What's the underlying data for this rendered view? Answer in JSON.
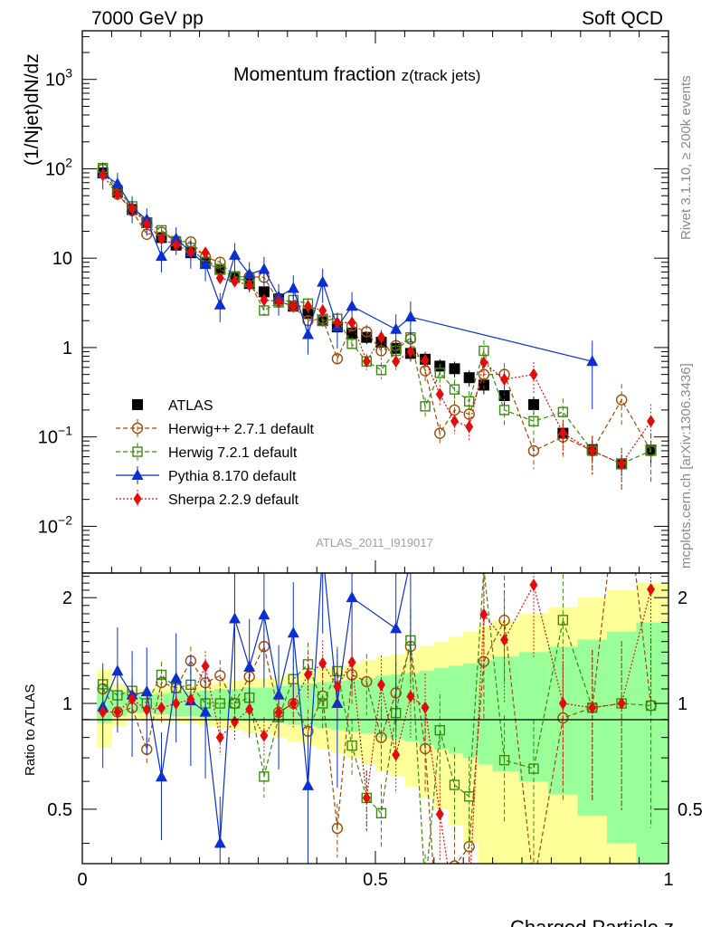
{
  "header": {
    "left": "7000 GeV pp",
    "right": "Soft QCD"
  },
  "side_labels": {
    "top": "Rivet 3.1.10, ≥ 200k events",
    "bottom": "mcplots.cern.ch [arXiv:1306.3436]"
  },
  "watermark": "ATLAS_2011_I919017",
  "chart_data": {
    "type": "scatter",
    "title": "Momentum fraction z(track jets)",
    "title_main": "Momentum fraction ",
    "title_sub": "z(track jets)",
    "xlabel": "Charged Particle z",
    "ylabel": "(1/Njet)dN/dz",
    "ratio_ylabel": "Ratio to ATLAS",
    "xlim": [
      0,
      1
    ],
    "ylim": [
      0.003,
      3500
    ],
    "ratio_ylim": [
      0.35,
      2.35
    ],
    "yscale": "log",
    "x_ticks": [
      "0",
      "0.5",
      "1"
    ],
    "y_ticks": [
      {
        "value": 0.01,
        "label": "10",
        "exp": "−2"
      },
      {
        "value": 0.1,
        "label": "10",
        "exp": "−1"
      },
      {
        "value": 1,
        "label": "1",
        "exp": ""
      },
      {
        "value": 10,
        "label": "10",
        "exp": ""
      },
      {
        "value": 100,
        "label": "10",
        "exp": "2"
      },
      {
        "value": 1000,
        "label": "10",
        "exp": "3"
      }
    ],
    "ratio_ticks": [
      "0.5",
      "1",
      "2"
    ],
    "ratio_tick_values": [
      0.5,
      1,
      2
    ],
    "legend_position": "center-left",
    "x": [
      0.035,
      0.06,
      0.085,
      0.11,
      0.135,
      0.16,
      0.185,
      0.21,
      0.235,
      0.26,
      0.285,
      0.31,
      0.335,
      0.36,
      0.385,
      0.41,
      0.435,
      0.46,
      0.485,
      0.51,
      0.535,
      0.56,
      0.585,
      0.61,
      0.635,
      0.66,
      0.685,
      0.72,
      0.77,
      0.82,
      0.87,
      0.92,
      0.97
    ],
    "band_edges": [
      0.025,
      0.05,
      0.075,
      0.1,
      0.125,
      0.15,
      0.175,
      0.2,
      0.225,
      0.25,
      0.275,
      0.3,
      0.325,
      0.35,
      0.375,
      0.4,
      0.425,
      0.45,
      0.475,
      0.5,
      0.525,
      0.55,
      0.575,
      0.6,
      0.625,
      0.65,
      0.675,
      0.7,
      0.745,
      0.795,
      0.845,
      0.895,
      0.945,
      1.0
    ],
    "band_stat": [
      0.12,
      0.08,
      0.06,
      0.06,
      0.07,
      0.08,
      0.08,
      0.09,
      0.1,
      0.1,
      0.11,
      0.11,
      0.12,
      0.13,
      0.14,
      0.15,
      0.16,
      0.17,
      0.18,
      0.2,
      0.21,
      0.22,
      0.24,
      0.26,
      0.28,
      0.3,
      0.33,
      0.36,
      0.4,
      0.45,
      0.52,
      0.6,
      0.7
    ],
    "band_total": [
      0.25,
      0.14,
      0.1,
      0.1,
      0.11,
      0.12,
      0.12,
      0.14,
      0.15,
      0.16,
      0.18,
      0.18,
      0.2,
      0.22,
      0.24,
      0.26,
      0.28,
      0.3,
      0.33,
      0.36,
      0.38,
      0.42,
      0.46,
      0.5,
      0.55,
      0.6,
      0.66,
      0.72,
      0.8,
      0.88,
      1.0,
      1.1,
      1.2
    ],
    "series": [
      {
        "name": "ATLAS",
        "color": "#000000",
        "marker": "square-filled",
        "line": "none",
        "values": [
          90,
          55,
          35,
          25,
          17,
          14,
          11.5,
          9,
          7.5,
          6.2,
          5.2,
          4.2,
          3.5,
          2.9,
          2.4,
          2.0,
          1.7,
          1.45,
          1.3,
          1.15,
          0.98,
          0.86,
          0.74,
          0.62,
          0.58,
          0.46,
          0.38,
          0.29,
          0.23,
          0.11,
          0.072,
          0.05,
          0.071
        ]
      },
      {
        "name": "Herwig++ 2.7.1 default",
        "color": "#9b4d0b",
        "marker": "circle-open",
        "line": "dashed",
        "values": [
          99,
          52,
          34,
          18.5,
          19.5,
          15.5,
          15.2,
          10.3,
          9.0,
          6.2,
          6.2,
          6.1,
          3.3,
          2.9,
          2.0,
          2.1,
          0.75,
          1.75,
          1.5,
          0.92,
          1.05,
          1.25,
          0.55,
          0.11,
          0.2,
          0.18,
          0.5,
          0.5,
          0.07,
          0.1,
          0.07,
          0.26,
          0.07
        ]
      },
      {
        "name": "Herwig 7.2.1 default",
        "color": "#3a8a0e",
        "marker": "square-open",
        "line": "dashed",
        "values": [
          102,
          58,
          38,
          25,
          20.5,
          15.5,
          13,
          9.0,
          7.5,
          6.2,
          5.4,
          2.6,
          3.2,
          3.4,
          3.1,
          2.0,
          2.1,
          1.1,
          0.7,
          0.56,
          0.92,
          1.3,
          0.22,
          0.52,
          0.34,
          0.25,
          0.92,
          0.2,
          0.15,
          0.19,
          0.07,
          0.05,
          0.07
        ]
      },
      {
        "name": "Pythia 8.170 default",
        "color": "#0b2fd1",
        "marker": "triangle-filled",
        "line": "solid",
        "values": [
          88,
          68,
          37,
          27,
          10.5,
          16.5,
          11.7,
          8.5,
          3.0,
          10.8,
          6.6,
          7.5,
          3.7,
          4.6,
          1.4,
          5.4,
          1.7,
          2.9,
          null,
          null,
          1.6,
          2.2,
          null,
          null,
          null,
          null,
          null,
          null,
          null,
          null,
          0.7,
          null,
          null
        ]
      },
      {
        "name": "Sherpa 2.2.9 default",
        "color": "#e20c0c",
        "marker": "diamond-filled",
        "line": "dotted",
        "values": [
          85,
          52,
          36,
          24,
          16.5,
          14,
          11.8,
          11.5,
          6.0,
          5.5,
          5.0,
          3.4,
          3.3,
          2.9,
          2.9,
          2.6,
          1.9,
          1.9,
          0.7,
          1.3,
          0.7,
          0.9,
          0.72,
          0.3,
          0.15,
          0.13,
          0.68,
          0.44,
          0.5,
          0.11,
          0.07,
          0.05,
          0.15
        ]
      }
    ]
  }
}
